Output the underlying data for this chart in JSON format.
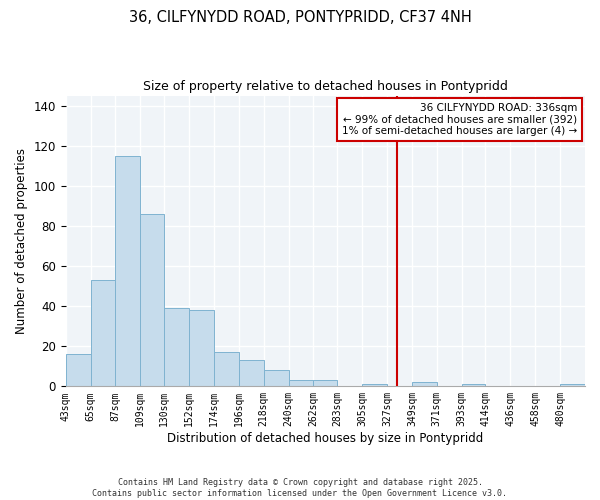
{
  "title": "36, CILFYNYDD ROAD, PONTYPRIDD, CF37 4NH",
  "subtitle": "Size of property relative to detached houses in Pontypridd",
  "xlabel": "Distribution of detached houses by size in Pontypridd",
  "ylabel": "Number of detached properties",
  "bar_labels": [
    "43sqm",
    "65sqm",
    "87sqm",
    "109sqm",
    "130sqm",
    "152sqm",
    "174sqm",
    "196sqm",
    "218sqm",
    "240sqm",
    "262sqm",
    "283sqm",
    "305sqm",
    "327sqm",
    "349sqm",
    "371sqm",
    "393sqm",
    "414sqm",
    "436sqm",
    "458sqm",
    "480sqm"
  ],
  "bar_values": [
    16,
    53,
    115,
    86,
    39,
    38,
    17,
    13,
    8,
    3,
    3,
    0,
    1,
    0,
    2,
    0,
    1,
    0,
    0,
    0,
    1
  ],
  "bar_color": "#c6dcec",
  "bar_edge_color": "#7fb3d0",
  "ylim": [
    0,
    145
  ],
  "yticks": [
    0,
    20,
    40,
    60,
    80,
    100,
    120,
    140
  ],
  "property_line_x": 336,
  "property_line_color": "#cc0000",
  "legend_title": "36 CILFYNYDD ROAD: 336sqm",
  "legend_line1": "← 99% of detached houses are smaller (392)",
  "legend_line2": "1% of semi-detached houses are larger (4) →",
  "footer_line1": "Contains HM Land Registry data © Crown copyright and database right 2025.",
  "footer_line2": "Contains public sector information licensed under the Open Government Licence v3.0.",
  "bin_edges": [
    43,
    65,
    87,
    109,
    130,
    152,
    174,
    196,
    218,
    240,
    262,
    283,
    305,
    327,
    349,
    371,
    393,
    414,
    436,
    458,
    480,
    502
  ],
  "bg_color": "#f0f4f8"
}
